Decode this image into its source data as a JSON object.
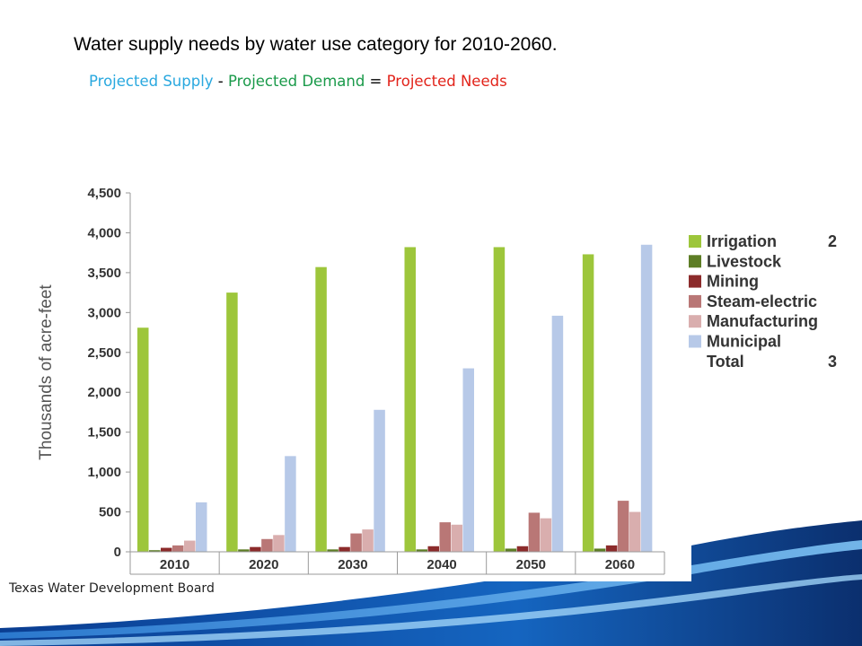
{
  "header": {
    "title": "Water supply needs by water use category for 2010-2060.",
    "equation": {
      "supply": "Projected Supply",
      "minus": " - ",
      "demand": "Projected Demand",
      "equals": " = ",
      "needs": "Projected Needs"
    }
  },
  "footer": {
    "source": "Texas Water Development Board"
  },
  "colors": {
    "supply": "#29a8df",
    "demand": "#1a9a4a",
    "needs": "#e2231a",
    "Irrigation": "#9dc63b",
    "Livestock": "#5d7d25",
    "Mining": "#8c2b2b",
    "Steam-electric": "#b97776",
    "Manufacturing": "#d9aeae",
    "Municipal": "#b7c9e8"
  },
  "chart_data": {
    "type": "bar",
    "ylabel": "Thousands of acre-feet",
    "xlabel": "",
    "ylim": [
      0,
      4500
    ],
    "yticks": [
      "0",
      "500",
      "1,000",
      "1,500",
      "2,000",
      "2,500",
      "3,000",
      "3,500",
      "4,000",
      "4,500"
    ],
    "categories": [
      "2010",
      "2020",
      "2030",
      "2040",
      "2050",
      "2060"
    ],
    "series": [
      {
        "name": "Irrigation",
        "values": [
          2810,
          3250,
          3570,
          3820,
          3820,
          3730
        ]
      },
      {
        "name": "Livestock",
        "values": [
          20,
          30,
          30,
          30,
          40,
          40
        ]
      },
      {
        "name": "Mining",
        "values": [
          50,
          60,
          60,
          70,
          70,
          80
        ]
      },
      {
        "name": "Steam-electric",
        "values": [
          80,
          160,
          230,
          370,
          490,
          640
        ]
      },
      {
        "name": "Manufacturing",
        "values": [
          140,
          210,
          280,
          340,
          420,
          500
        ]
      },
      {
        "name": "Municipal",
        "values": [
          620,
          1200,
          1780,
          2300,
          2960,
          3850
        ]
      }
    ],
    "legend": {
      "entries": [
        "Irrigation",
        "Livestock",
        "Mining",
        "Steam-electric",
        "Manufacturing",
        "Municipal"
      ],
      "total_label": "Total",
      "clipped_values": [
        "2",
        "3"
      ],
      "placement": "right"
    },
    "grid": false
  }
}
